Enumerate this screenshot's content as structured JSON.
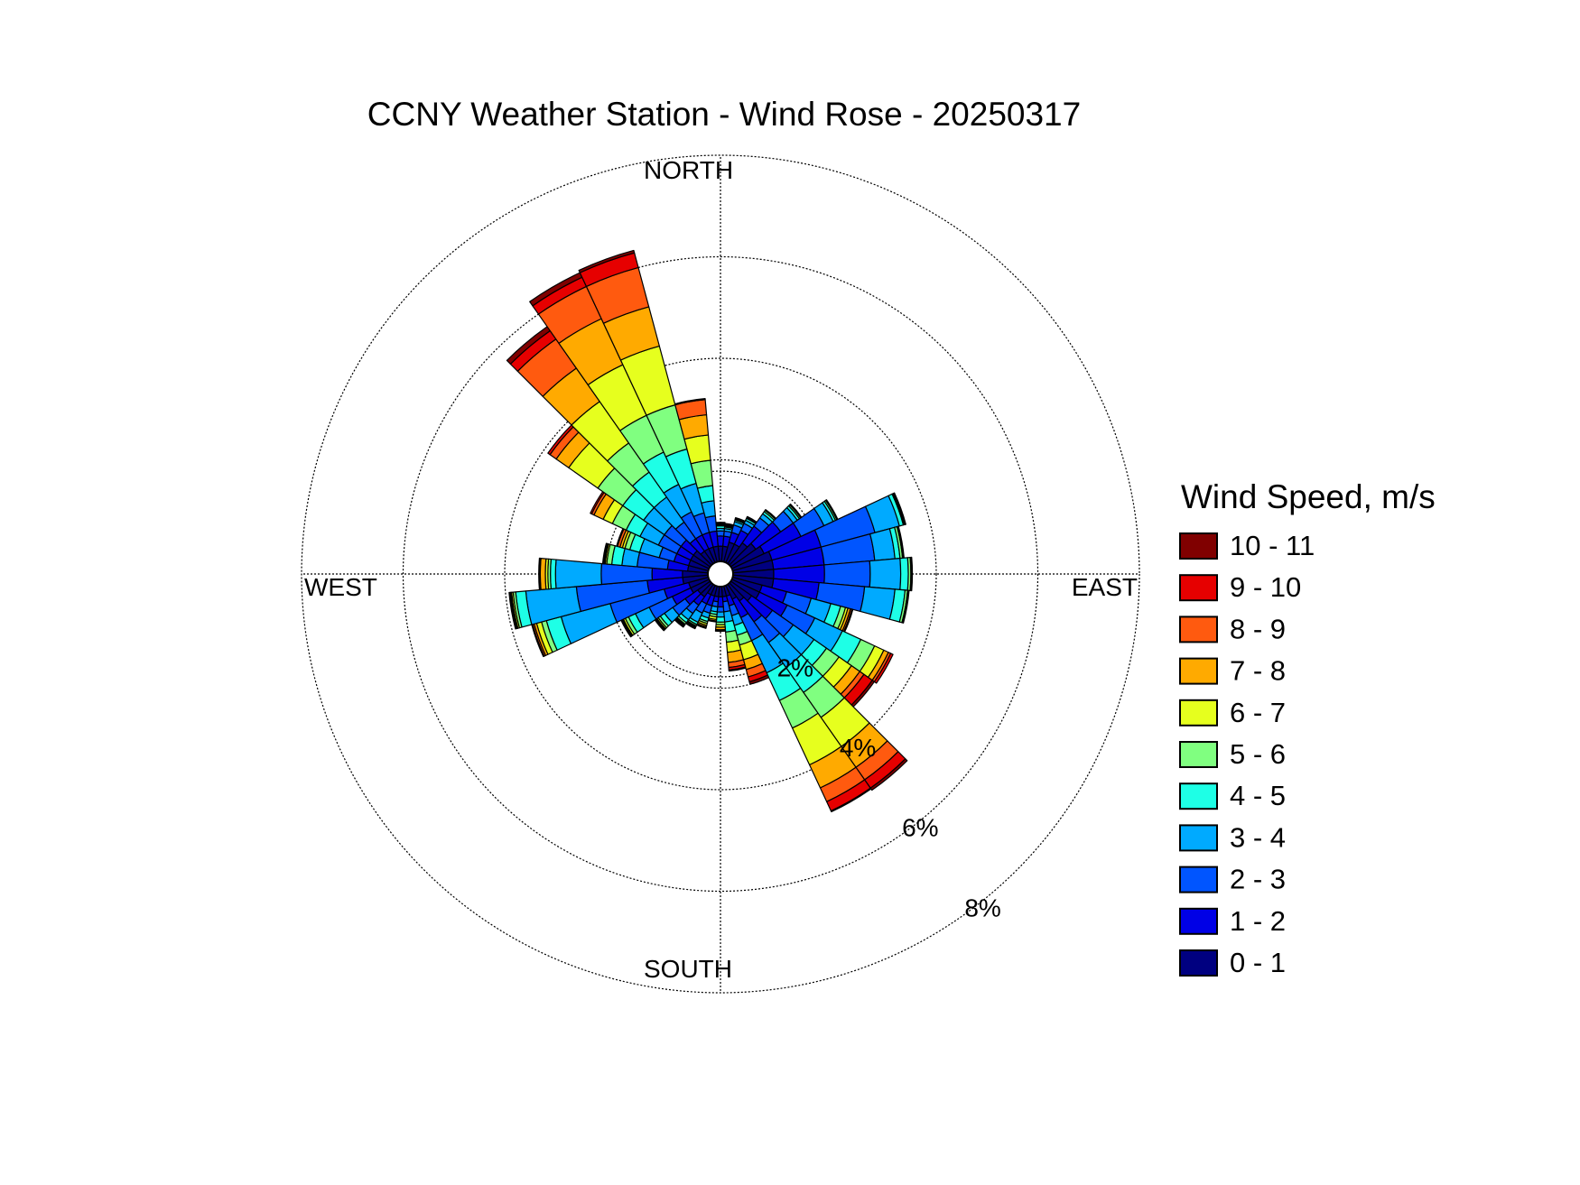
{
  "chart_data": {
    "type": "wind-rose",
    "title": "CCNY Weather Station - Wind Rose - 20250317",
    "directions": {
      "north": "NORTH",
      "east": "EAST",
      "south": "SOUTH",
      "west": "WEST"
    },
    "radial_axis": {
      "unit": "%",
      "max": 8,
      "ticks": [
        2,
        4,
        6,
        8
      ],
      "tick_labels": [
        "2%",
        "4%",
        "6%",
        "8%"
      ],
      "grid": true
    },
    "legend": {
      "title": "Wind Speed, m/s",
      "placement": "right",
      "items": [
        {
          "label": "10 - 11",
          "color": "#800000"
        },
        {
          "label": "9 - 10",
          "color": "#e60000"
        },
        {
          "label": "8 - 9",
          "color": "#ff5a0f"
        },
        {
          "label": "7 - 8",
          "color": "#ffaa00"
        },
        {
          "label": "6 - 7",
          "color": "#e6ff1e"
        },
        {
          "label": "5 - 6",
          "color": "#80ff80"
        },
        {
          "label": "4 - 5",
          "color": "#1effe6"
        },
        {
          "label": "3 - 4",
          "color": "#00aaff"
        },
        {
          "label": "2 - 3",
          "color": "#0055ff"
        },
        {
          "label": "1 - 2",
          "color": "#0000e6"
        },
        {
          "label": "0 - 1",
          "color": "#000080"
        }
      ]
    },
    "sector_width_deg": 10,
    "bin_order": [
      "0 - 1",
      "1 - 2",
      "2 - 3",
      "3 - 4",
      "4 - 5",
      "5 - 6",
      "6 - 7",
      "7 - 8",
      "8 - 9",
      "9 - 10",
      "10 - 11"
    ],
    "sectors": [
      {
        "dir": 0,
        "cum": [
          0.3,
          0.5,
          0.6,
          0.65,
          0.7,
          0.72,
          0.74,
          0.75,
          0.76,
          0.77,
          0.77
        ]
      },
      {
        "dir": 10,
        "cum": [
          0.3,
          0.5,
          0.6,
          0.65,
          0.68,
          0.7,
          0.72,
          0.73,
          0.74,
          0.75,
          0.75
        ]
      },
      {
        "dir": 20,
        "cum": [
          0.4,
          0.6,
          0.75,
          0.82,
          0.85,
          0.87,
          0.88,
          0.89,
          0.9,
          0.9,
          0.9
        ]
      },
      {
        "dir": 30,
        "cum": [
          0.4,
          0.7,
          0.85,
          0.92,
          0.96,
          0.98,
          0.99,
          1.0,
          1.0,
          1.0,
          1.0
        ]
      },
      {
        "dir": 40,
        "cum": [
          0.5,
          0.9,
          1.1,
          1.2,
          1.25,
          1.28,
          1.29,
          1.3,
          1.3,
          1.3,
          1.3
        ]
      },
      {
        "dir": 50,
        "cum": [
          0.6,
          1.2,
          1.5,
          1.6,
          1.65,
          1.68,
          1.69,
          1.7,
          1.7,
          1.7,
          1.7
        ]
      },
      {
        "dir": 60,
        "cum": [
          0.7,
          1.5,
          2.0,
          2.2,
          2.25,
          2.28,
          2.29,
          2.3,
          2.3,
          2.3,
          2.3
        ]
      },
      {
        "dir": 70,
        "cum": [
          0.8,
          1.8,
          2.9,
          3.4,
          3.48,
          3.5,
          3.52,
          3.53,
          3.53,
          3.53,
          3.53
        ]
      },
      {
        "dir": 80,
        "cum": [
          0.8,
          1.8,
          2.8,
          3.2,
          3.3,
          3.35,
          3.37,
          3.38,
          3.38,
          3.38,
          3.38
        ]
      },
      {
        "dir": 90,
        "cum": [
          0.8,
          1.8,
          2.7,
          3.3,
          3.45,
          3.5,
          3.52,
          3.53,
          3.53,
          3.53,
          3.53
        ]
      },
      {
        "dir": 100,
        "cum": [
          0.8,
          1.7,
          2.6,
          3.2,
          3.4,
          3.45,
          3.47,
          3.48,
          3.48,
          3.48,
          3.48
        ]
      },
      {
        "dir": 110,
        "cum": [
          0.6,
          1.1,
          1.6,
          2.0,
          2.2,
          2.3,
          2.35,
          2.4,
          2.43,
          2.45,
          2.45
        ]
      },
      {
        "dir": 120,
        "cum": [
          0.6,
          1.2,
          1.8,
          2.4,
          2.8,
          3.1,
          3.3,
          3.4,
          3.45,
          3.5,
          3.5
        ]
      },
      {
        "dir": 130,
        "cum": [
          0.5,
          1.0,
          1.5,
          2.0,
          2.3,
          2.6,
          2.9,
          3.1,
          3.2,
          3.4,
          3.45
        ]
      },
      {
        "dir": 140,
        "cum": [
          0.4,
          0.9,
          1.4,
          2.0,
          2.6,
          3.2,
          3.9,
          4.4,
          4.7,
          4.9,
          4.95
        ]
      },
      {
        "dir": 150,
        "cum": [
          0.3,
          0.7,
          1.2,
          1.9,
          2.5,
          3.1,
          3.9,
          4.4,
          4.7,
          4.9,
          4.92
        ]
      },
      {
        "dir": 160,
        "cum": [
          0.2,
          0.4,
          0.6,
          0.8,
          1.0,
          1.2,
          1.5,
          1.7,
          1.85,
          1.95,
          2.0
        ]
      },
      {
        "dir": 170,
        "cum": [
          0.2,
          0.3,
          0.5,
          0.7,
          0.9,
          1.1,
          1.3,
          1.5,
          1.6,
          1.65,
          1.67
        ]
      },
      {
        "dir": 180,
        "cum": [
          0.2,
          0.4,
          0.5,
          0.6,
          0.7,
          0.75,
          0.8,
          0.85,
          0.87,
          0.88,
          0.88
        ]
      },
      {
        "dir": 190,
        "cum": [
          0.2,
          0.3,
          0.4,
          0.5,
          0.55,
          0.6,
          0.65,
          0.68,
          0.7,
          0.7,
          0.7
        ]
      },
      {
        "dir": 200,
        "cum": [
          0.2,
          0.4,
          0.55,
          0.65,
          0.72,
          0.76,
          0.8,
          0.83,
          0.85,
          0.86,
          0.86
        ]
      },
      {
        "dir": 210,
        "cum": [
          0.2,
          0.4,
          0.6,
          0.8,
          0.85,
          0.88,
          0.9,
          0.92,
          0.93,
          0.94,
          0.94
        ]
      },
      {
        "dir": 220,
        "cum": [
          0.3,
          0.5,
          0.7,
          0.85,
          0.92,
          0.96,
          0.98,
          1.0,
          1.02,
          1.03,
          1.03
        ]
      },
      {
        "dir": 230,
        "cum": [
          0.3,
          0.6,
          0.9,
          1.1,
          1.2,
          1.25,
          1.28,
          1.3,
          1.32,
          1.33,
          1.33
        ]
      },
      {
        "dir": 240,
        "cum": [
          0.4,
          0.8,
          1.3,
          1.6,
          1.75,
          1.82,
          1.86,
          1.88,
          1.9,
          1.91,
          1.91
        ]
      },
      {
        "dir": 250,
        "cum": [
          0.4,
          0.9,
          2.0,
          3.0,
          3.3,
          3.4,
          3.5,
          3.55,
          3.58,
          3.6,
          3.6
        ]
      },
      {
        "dir": 260,
        "cum": [
          0.5,
          1.2,
          2.6,
          3.6,
          3.8,
          3.85,
          3.88,
          3.9,
          3.92,
          3.93,
          3.93
        ]
      },
      {
        "dir": 270,
        "cum": [
          0.5,
          1.1,
          2.1,
          3.0,
          3.1,
          3.15,
          3.2,
          3.3,
          3.32,
          3.33,
          3.33
        ]
      },
      {
        "dir": 280,
        "cum": [
          0.4,
          0.8,
          1.4,
          1.7,
          1.9,
          2.0,
          2.03,
          2.05,
          2.07,
          2.08,
          2.08
        ]
      },
      {
        "dir": 290,
        "cum": [
          0.4,
          0.7,
          1.0,
          1.4,
          1.6,
          1.7,
          1.75,
          1.8,
          1.85,
          1.87,
          1.87
        ]
      },
      {
        "dir": 300,
        "cum": [
          0.4,
          0.7,
          1.1,
          1.5,
          1.8,
          2.1,
          2.3,
          2.5,
          2.55,
          2.58,
          2.58
        ]
      },
      {
        "dir": 310,
        "cum": [
          0.4,
          0.7,
          1.1,
          1.6,
          2.1,
          2.7,
          3.4,
          3.7,
          3.85,
          3.9,
          3.9
        ]
      },
      {
        "dir": 320,
        "cum": [
          0.3,
          0.6,
          1.0,
          1.6,
          2.2,
          2.9,
          3.9,
          4.7,
          5.4,
          5.6,
          5.7
        ]
      },
      {
        "dir": 330,
        "cum": [
          0.3,
          0.6,
          1.1,
          1.7,
          2.4,
          3.2,
          4.3,
          5.3,
          6.0,
          6.2,
          6.3
        ]
      },
      {
        "dir": 340,
        "cum": [
          0.3,
          0.6,
          1.0,
          1.6,
          2.3,
          3.2,
          4.4,
          5.2,
          6.0,
          6.3,
          6.35
        ]
      },
      {
        "dir": 350,
        "cum": [
          0.3,
          0.6,
          0.9,
          1.2,
          1.5,
          2.0,
          2.5,
          2.9,
          3.2,
          3.22,
          3.22
        ]
      }
    ]
  }
}
